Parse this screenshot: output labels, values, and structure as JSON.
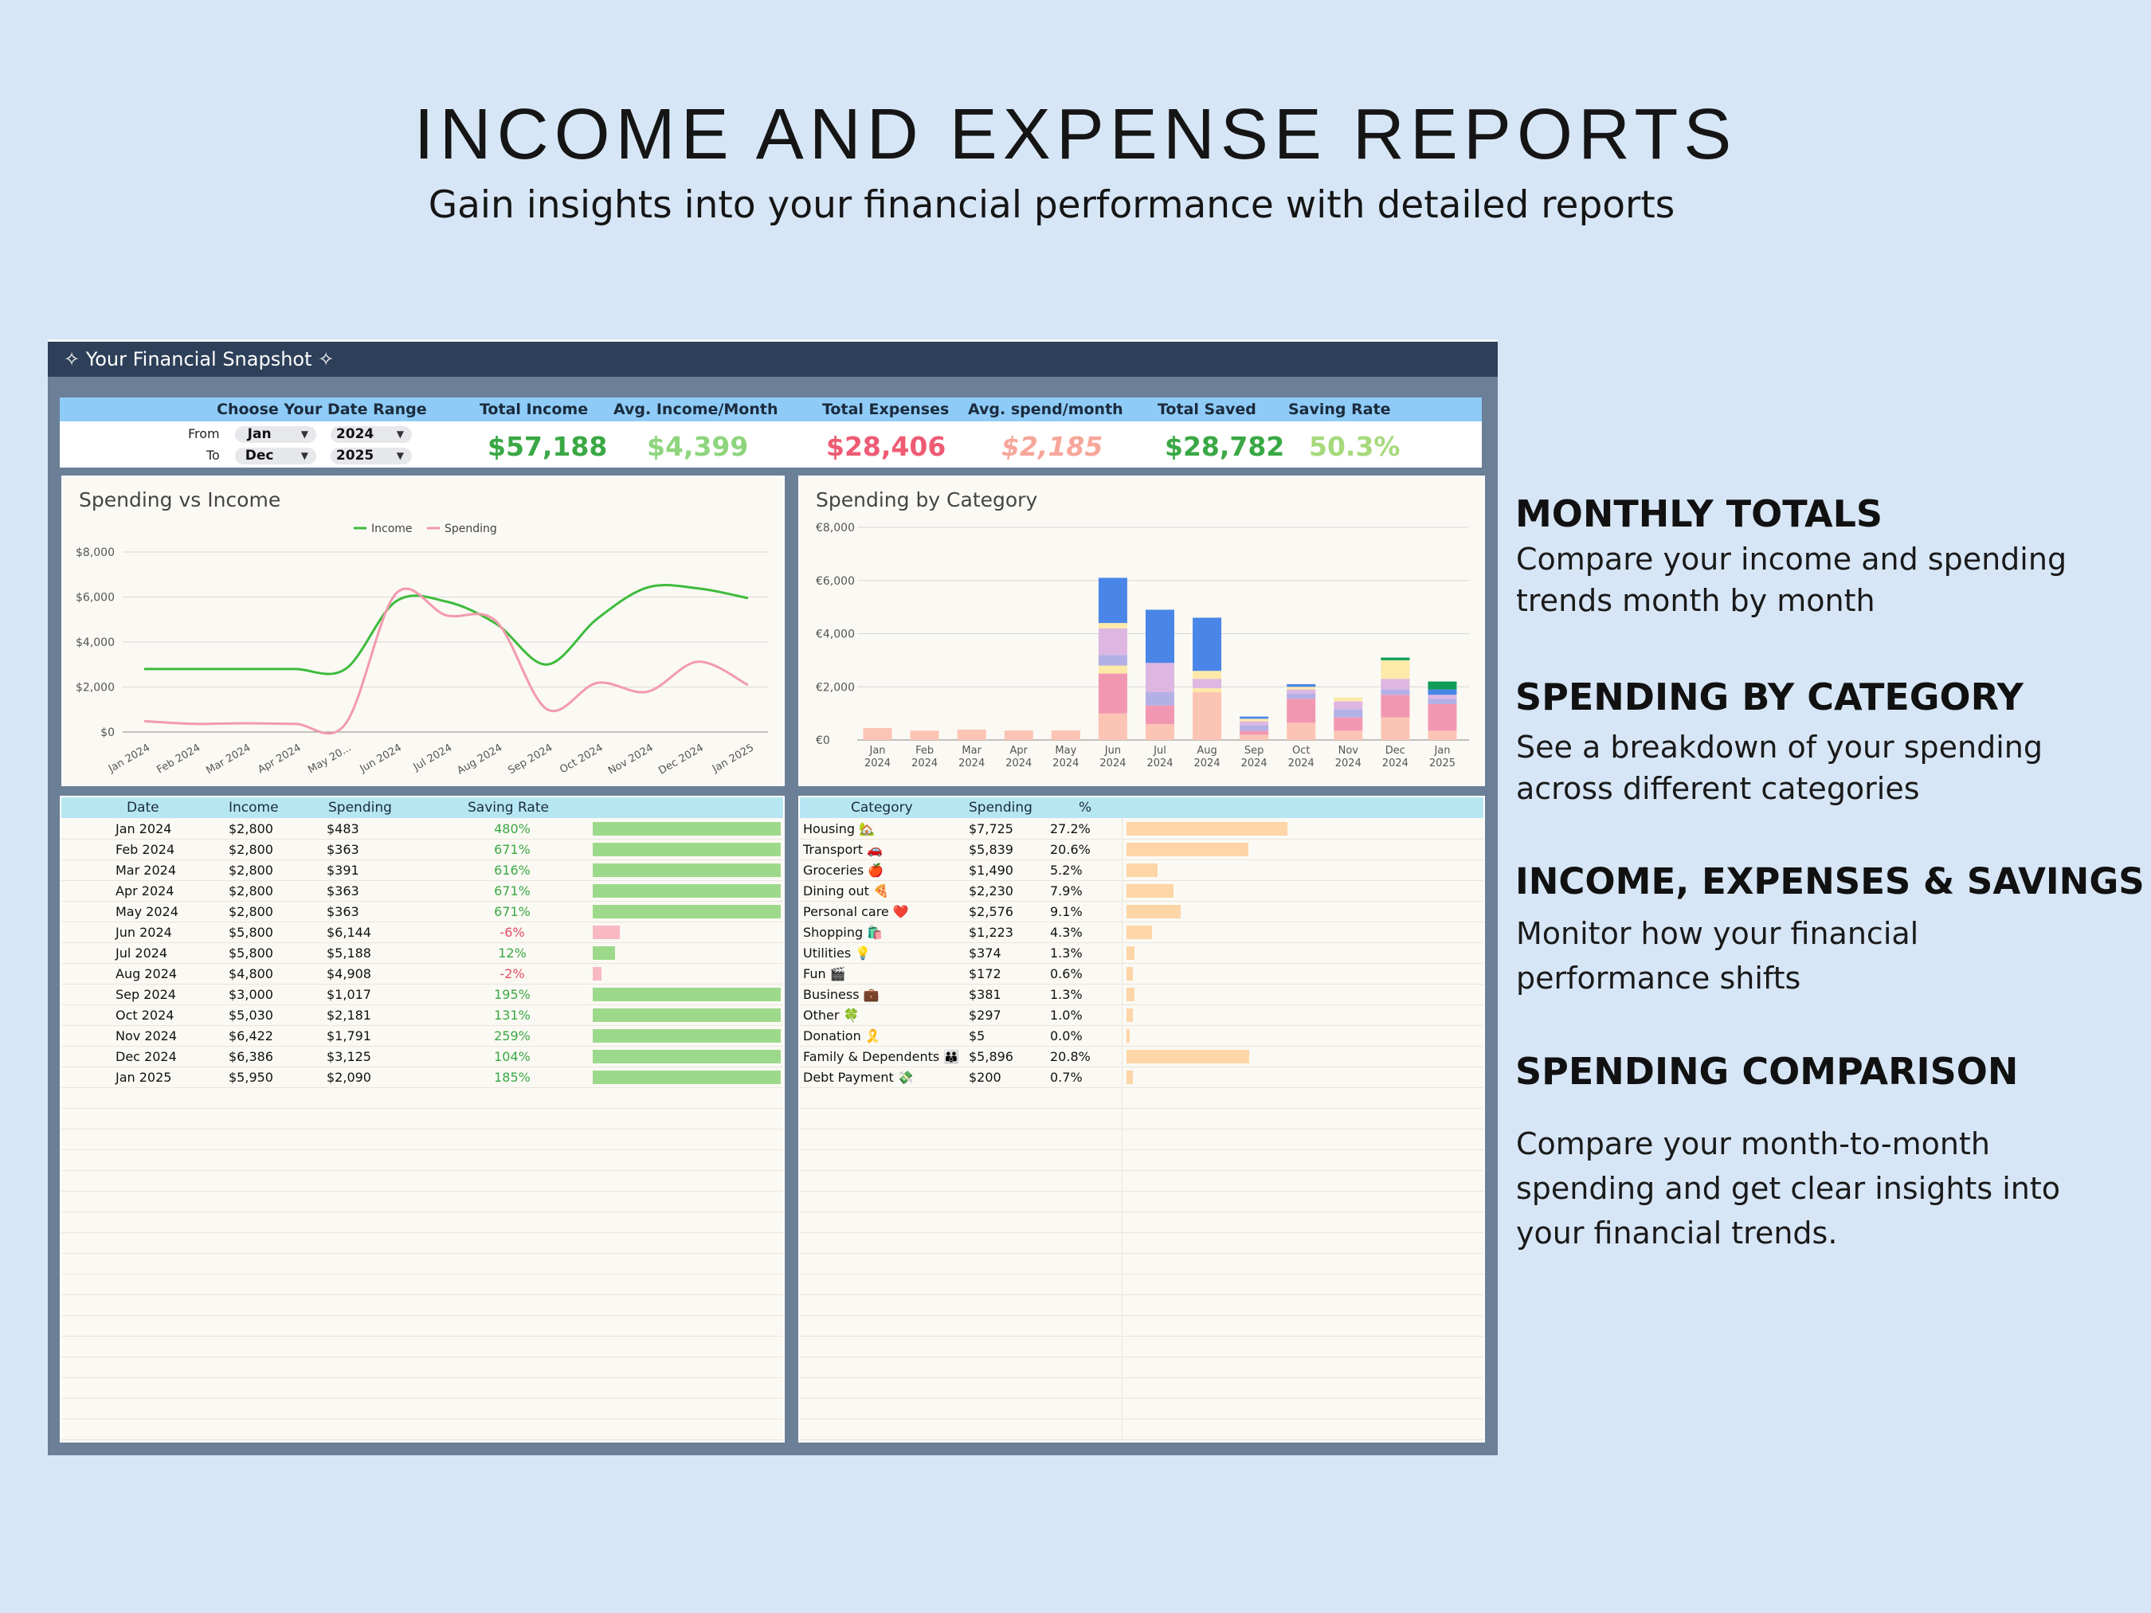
{
  "page": {
    "title": "INCOME AND EXPENSE REPORTS",
    "subtitle": "Gain insights into your financial performance with detailed reports"
  },
  "snapshot": {
    "header": "✧ Your Financial Snapshot ✧",
    "date_range": {
      "label": "Choose Your Date Range",
      "from_label": "From",
      "to_label": "To",
      "from_month": "Jan",
      "from_year": "2024",
      "to_month": "Dec",
      "to_year": "2025"
    },
    "kpis": {
      "total_income_label": "Total Income",
      "total_income": "$57,188",
      "avg_income_label": "Avg. Income/Month",
      "avg_income": "$4,399",
      "total_expenses_label": "Total Expenses",
      "total_expenses": "$28,406",
      "avg_spend_label": "Avg. spend/month",
      "avg_spend": "$2,185",
      "total_saved_label": "Total Saved",
      "total_saved": "$28,782",
      "saving_rate_label": "Saving Rate",
      "saving_rate": "50.3%"
    }
  },
  "colors": {
    "income_line": "#3dbb3d",
    "spending_line": "#f29aae",
    "bar_blue": "#4a86e8",
    "bar_pink": "#f297b2",
    "bar_lilac": "#ddb6e2",
    "bar_peach": "#fcc4b4",
    "bar_yellow": "#fde9a8",
    "bar_purple": "#b3b0e6",
    "bar_green": "#109d58",
    "rate_bar": "#9dd98b",
    "rate_bar_negative": "#f8b9c3",
    "category_bar": "#fdd5a6"
  },
  "chart_data": [
    {
      "type": "line",
      "title": "Spending vs Income",
      "legend_position": "top",
      "categories": [
        "Jan 2024",
        "Feb 2024",
        "Mar 2024",
        "Apr 2024",
        "May 20...",
        "Jun 2024",
        "Jul 2024",
        "Aug 2024",
        "Sep 2024",
        "Oct 2024",
        "Nov 2024",
        "Dec 2024",
        "Jan 2025"
      ],
      "series": [
        {
          "name": "Income",
          "values": [
            2800,
            2800,
            2800,
            2800,
            2800,
            5800,
            5800,
            4800,
            3000,
            5030,
            6422,
            6386,
            5950
          ]
        },
        {
          "name": "Spending",
          "values": [
            483,
            363,
            391,
            363,
            363,
            6144,
            5188,
            4908,
            1017,
            2181,
            1791,
            3125,
            2090
          ]
        }
      ],
      "ylim": [
        0,
        8000
      ],
      "yticks": [
        "$0",
        "$2,000",
        "$4,000",
        "$6,000",
        "$8,000"
      ],
      "grid": true
    },
    {
      "type": "bar",
      "stacked": true,
      "title": "Spending by Category",
      "categories": [
        [
          "Jan",
          "2024"
        ],
        [
          "Feb",
          "2024"
        ],
        [
          "Mar",
          "2024"
        ],
        [
          "Apr",
          "2024"
        ],
        [
          "May",
          "2024"
        ],
        [
          "Jun",
          "2024"
        ],
        [
          "Jul",
          "2024"
        ],
        [
          "Aug",
          "2024"
        ],
        [
          "Sep",
          "2024"
        ],
        [
          "Oct",
          "2024"
        ],
        [
          "Nov",
          "2024"
        ],
        [
          "Dec",
          "2024"
        ],
        [
          "Jan",
          "2025"
        ]
      ],
      "series": [
        {
          "color": "bar_peach",
          "values": [
            450,
            350,
            390,
            360,
            360,
            1000,
            600,
            1800,
            200,
            650,
            350,
            850,
            350
          ]
        },
        {
          "color": "bar_pink",
          "values": [
            0,
            0,
            0,
            0,
            0,
            1500,
            700,
            0,
            150,
            900,
            500,
            850,
            1000
          ]
        },
        {
          "color": "bar_yellow",
          "values": [
            0,
            0,
            0,
            0,
            0,
            300,
            0,
            150,
            0,
            0,
            0,
            0,
            0
          ]
        },
        {
          "color": "bar_purple",
          "values": [
            0,
            0,
            0,
            0,
            0,
            400,
            500,
            0,
            200,
            200,
            300,
            200,
            200
          ]
        },
        {
          "color": "bar_lilac",
          "values": [
            0,
            0,
            0,
            0,
            0,
            1000,
            1100,
            350,
            150,
            150,
            300,
            400,
            150
          ]
        },
        {
          "color": "bar_yellow",
          "values": [
            0,
            0,
            0,
            0,
            0,
            200,
            0,
            300,
            100,
            100,
            150,
            700,
            0
          ]
        },
        {
          "color": "bar_blue",
          "values": [
            0,
            0,
            0,
            0,
            0,
            1700,
            2000,
            2000,
            80,
            100,
            0,
            0,
            200
          ]
        },
        {
          "color": "bar_green",
          "values": [
            0,
            0,
            0,
            0,
            0,
            0,
            0,
            0,
            0,
            0,
            0,
            100,
            300
          ]
        }
      ],
      "ylim": [
        0,
        8000
      ],
      "yticks": [
        "€0",
        "€2,000",
        "€4,000",
        "€6,000",
        "€8,000"
      ],
      "grid": true
    }
  ],
  "monthly_table": {
    "headers": [
      "Date",
      "Income",
      "Spending",
      "Saving Rate"
    ],
    "rows": [
      {
        "date": "Jan 2024",
        "income": "$2,800",
        "spending": "$483",
        "rate": "480%",
        "rate_value": 4.8
      },
      {
        "date": "Feb 2024",
        "income": "$2,800",
        "spending": "$363",
        "rate": "671%",
        "rate_value": 6.71
      },
      {
        "date": "Mar 2024",
        "income": "$2,800",
        "spending": "$391",
        "rate": "616%",
        "rate_value": 6.16
      },
      {
        "date": "Apr 2024",
        "income": "$2,800",
        "spending": "$363",
        "rate": "671%",
        "rate_value": 6.71
      },
      {
        "date": "May 2024",
        "income": "$2,800",
        "spending": "$363",
        "rate": "671%",
        "rate_value": 6.71
      },
      {
        "date": "Jun 2024",
        "income": "$5,800",
        "spending": "$6,144",
        "rate": "-6%",
        "rate_value": -0.06
      },
      {
        "date": "Jul 2024",
        "income": "$5,800",
        "spending": "$5,188",
        "rate": "12%",
        "rate_value": 0.12
      },
      {
        "date": "Aug 2024",
        "income": "$4,800",
        "spending": "$4,908",
        "rate": "-2%",
        "rate_value": -0.02
      },
      {
        "date": "Sep 2024",
        "income": "$3,000",
        "spending": "$1,017",
        "rate": "195%",
        "rate_value": 1.95
      },
      {
        "date": "Oct 2024",
        "income": "$5,030",
        "spending": "$2,181",
        "rate": "131%",
        "rate_value": 1.31
      },
      {
        "date": "Nov 2024",
        "income": "$6,422",
        "spending": "$1,791",
        "rate": "259%",
        "rate_value": 2.59
      },
      {
        "date": "Dec 2024",
        "income": "$6,386",
        "spending": "$3,125",
        "rate": "104%",
        "rate_value": 1.04
      },
      {
        "date": "Jan 2025",
        "income": "$5,950",
        "spending": "$2,090",
        "rate": "185%",
        "rate_value": 1.85
      }
    ]
  },
  "category_table": {
    "headers": [
      "Category",
      "Spending",
      "%"
    ],
    "rows": [
      {
        "category": "Housing 🏡",
        "spending": "$7,725",
        "pct": "27.2%",
        "pct_value": 27.2
      },
      {
        "category": "Transport 🚗",
        "spending": "$5,839",
        "pct": "20.6%",
        "pct_value": 20.6
      },
      {
        "category": "Groceries 🍎",
        "spending": "$1,490",
        "pct": "5.2%",
        "pct_value": 5.2
      },
      {
        "category": "Dining out 🍕",
        "spending": "$2,230",
        "pct": "7.9%",
        "pct_value": 7.9
      },
      {
        "category": "Personal care ❤️",
        "spending": "$2,576",
        "pct": "9.1%",
        "pct_value": 9.1
      },
      {
        "category": "Shopping 🛍️",
        "spending": "$1,223",
        "pct": "4.3%",
        "pct_value": 4.3
      },
      {
        "category": "Utilities 💡",
        "spending": "$374",
        "pct": "1.3%",
        "pct_value": 1.3
      },
      {
        "category": "Fun 🎬",
        "spending": "$172",
        "pct": "0.6%",
        "pct_value": 0.6
      },
      {
        "category": "Business 💼",
        "spending": "$381",
        "pct": "1.3%",
        "pct_value": 1.3
      },
      {
        "category": "Other 🍀",
        "spending": "$297",
        "pct": "1.0%",
        "pct_value": 1.0
      },
      {
        "category": "Donation 🎗️",
        "spending": "$5",
        "pct": "0.0%",
        "pct_value": 0.0
      },
      {
        "category": "Family & Dependents 👪",
        "spending": "$5,896",
        "pct": "20.8%",
        "pct_value": 20.8
      },
      {
        "category": "Debt Payment 💸",
        "spending": "$200",
        "pct": "0.7%",
        "pct_value": 0.7
      }
    ]
  },
  "features": [
    {
      "heading": "MONTHLY TOTALS",
      "text": "Compare your income and spending trends month by month"
    },
    {
      "heading": "SPENDING BY CATEGORY",
      "text": "See a breakdown of your spending across different categories"
    },
    {
      "heading": "INCOME, EXPENSES & SAVINGS",
      "text": " Monitor how your financial performance shifts"
    },
    {
      "heading": "SPENDING COMPARISON",
      "text": "Compare your month-to-month spending and get  clear insights into your financial trends."
    }
  ]
}
